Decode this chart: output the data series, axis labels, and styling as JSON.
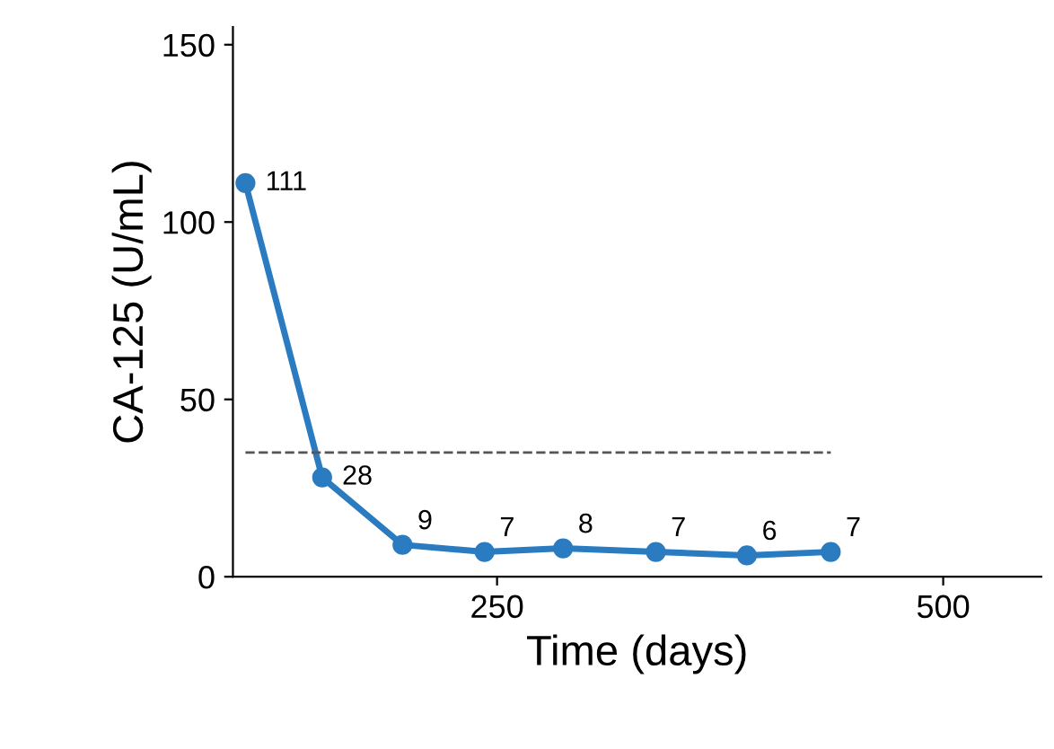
{
  "chart_data": {
    "type": "line",
    "xlabel": "Time (days)",
    "ylabel": "CA-125 (U/mL)",
    "x": [
      109,
      152,
      197,
      243,
      287,
      339,
      390,
      437
    ],
    "series": [
      {
        "color": "#2b7bc0",
        "values": [
          111,
          28,
          9,
          7,
          8,
          7,
          6,
          7
        ]
      }
    ],
    "xlim": [
      102,
      555
    ],
    "xticks": [
      250,
      500
    ],
    "ylim": [
      0,
      155
    ],
    "yticks": [
      0,
      50,
      100,
      150
    ],
    "ref_lines": [
      {
        "axis": "y",
        "value": 35,
        "color": "#555555",
        "line_style": "dashed"
      }
    ],
    "data_labels": true,
    "marker": "circle",
    "line_style": "solid",
    "grid": false,
    "legend": false
  }
}
